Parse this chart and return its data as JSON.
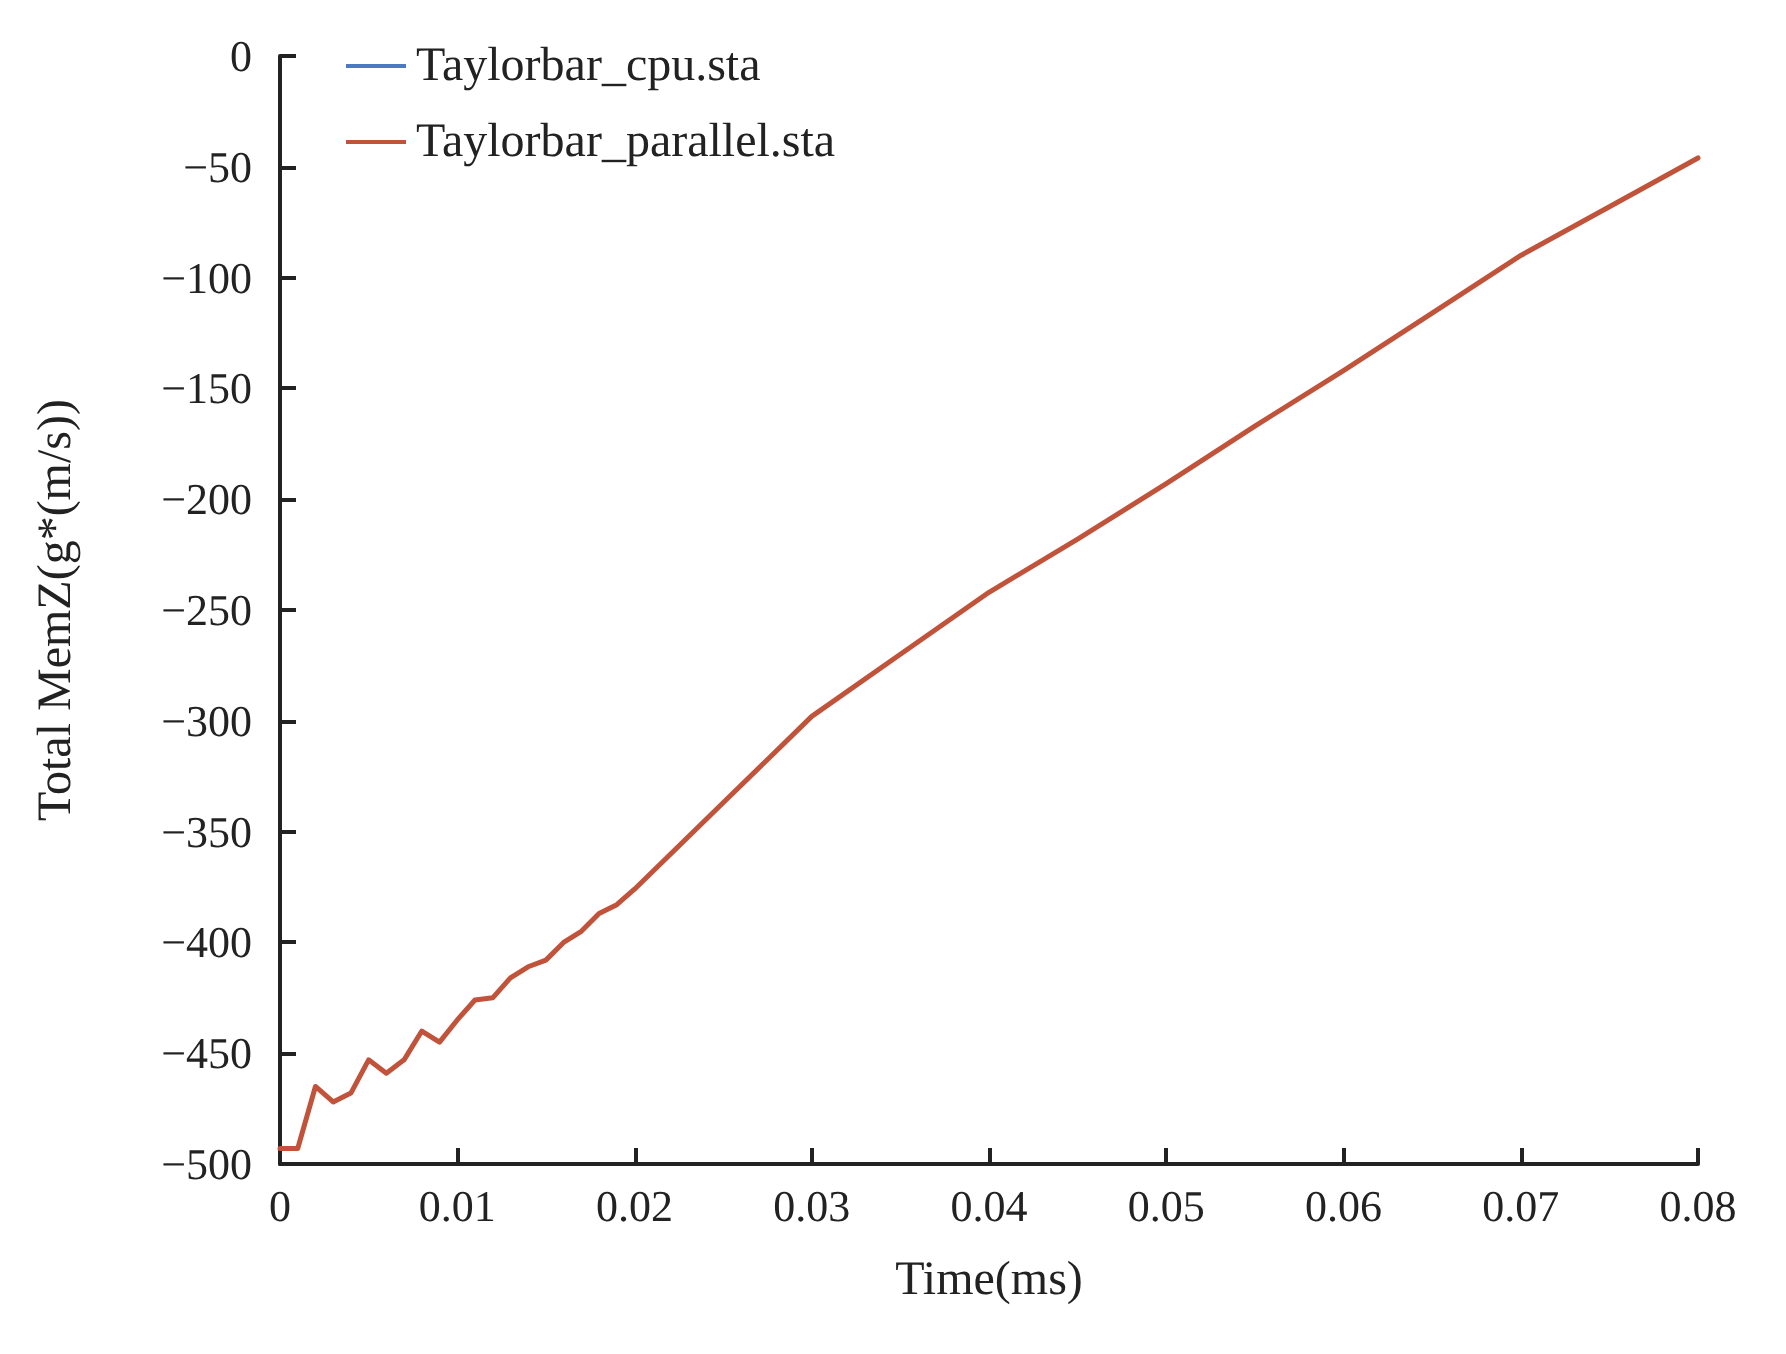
{
  "chart_data": {
    "type": "line",
    "xlabel": "Time(ms)",
    "ylabel": "Total MemZ(g*(m/s))",
    "x": [
      0,
      0.001,
      0.002,
      0.003,
      0.004,
      0.005,
      0.006,
      0.007,
      0.008,
      0.009,
      0.01,
      0.011,
      0.012,
      0.013,
      0.014,
      0.015,
      0.016,
      0.017,
      0.018,
      0.019,
      0.02,
      0.025,
      0.03,
      0.035,
      0.04,
      0.045,
      0.05,
      0.055,
      0.06,
      0.065,
      0.07,
      0.075,
      0.08
    ],
    "series": [
      {
        "name": "Taylorbar_cpu.sta",
        "color": "#4a7bc0",
        "values": [
          null,
          null,
          null,
          null,
          null,
          null,
          null,
          null,
          null,
          null,
          null,
          null,
          null,
          null,
          null,
          null,
          null,
          null,
          null,
          null,
          null,
          null,
          null,
          null,
          null,
          null,
          null,
          null,
          null,
          null,
          null,
          null,
          null
        ]
      },
      {
        "name": "Taylorbar_parallel.sta",
        "color": "#c0533a",
        "values": [
          -493,
          -493,
          -465,
          -472,
          -468,
          -453,
          -459,
          -453,
          -440,
          -445,
          -435,
          -426,
          -425,
          -416,
          -411,
          -408,
          -400,
          -395,
          -387,
          -383,
          -376,
          -337,
          -298,
          -270,
          -242,
          -218,
          -193,
          -167,
          -142,
          -116,
          -90,
          -68,
          -46
        ]
      }
    ],
    "xlim": [
      0,
      0.08
    ],
    "xticks": [
      0,
      0.01,
      0.02,
      0.03,
      0.04,
      0.05,
      0.06,
      0.07,
      0.08
    ],
    "ylim": [
      -500,
      0
    ],
    "yticks": [
      -500,
      -450,
      -400,
      -350,
      -300,
      -250,
      -200,
      -150,
      -100,
      -50,
      0
    ],
    "grid": false,
    "legend": "top left",
    "marker": "none",
    "line_style": "solid"
  }
}
